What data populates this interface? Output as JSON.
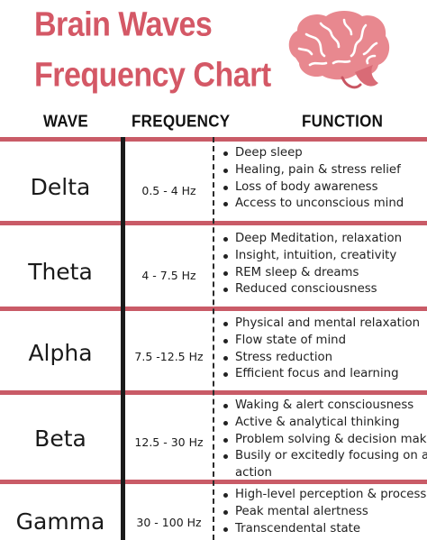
{
  "title": {
    "line1": "Brain Waves",
    "line2": "Frequency Chart"
  },
  "image": {
    "icon": "brain-icon",
    "color": "#e8888f"
  },
  "colors": {
    "accent": "#d45866",
    "rule": "#c95b67",
    "divider": "#1b1b1b"
  },
  "headers": {
    "wave": "WAVE",
    "frequency": "FREQUENCY",
    "function": "FUNCTION"
  },
  "rows": [
    {
      "wave": "Delta",
      "frequency": "0.5 - 4 Hz",
      "functions": [
        "Deep sleep",
        "Healing, pain & stress relief",
        "Loss of body awareness",
        "Access to unconscious mind"
      ]
    },
    {
      "wave": "Theta",
      "frequency": "4 - 7.5 Hz",
      "functions": [
        "Deep Meditation, relaxation",
        "Insight, intuition, creativity",
        "REM sleep & dreams",
        "Reduced consciousness"
      ]
    },
    {
      "wave": "Alpha",
      "frequency": "7.5 -12.5 Hz",
      "functions": [
        "Physical and mental relaxation",
        "Flow state of mind",
        "Stress reduction",
        "Efficient focus and learning"
      ]
    },
    {
      "wave": "Beta",
      "frequency": "12.5 - 30 Hz",
      "functions": [
        "Waking & alert consciousness",
        "Active & analytical thinking",
        "Problem solving & decision making",
        "Busily or excitedly focusing on an",
        "action"
      ]
    },
    {
      "wave": "Gamma",
      "frequency": "30 - 100 Hz",
      "functions": [
        "High-level perception & process",
        "Peak mental alertness",
        "Transcendental state"
      ]
    }
  ]
}
